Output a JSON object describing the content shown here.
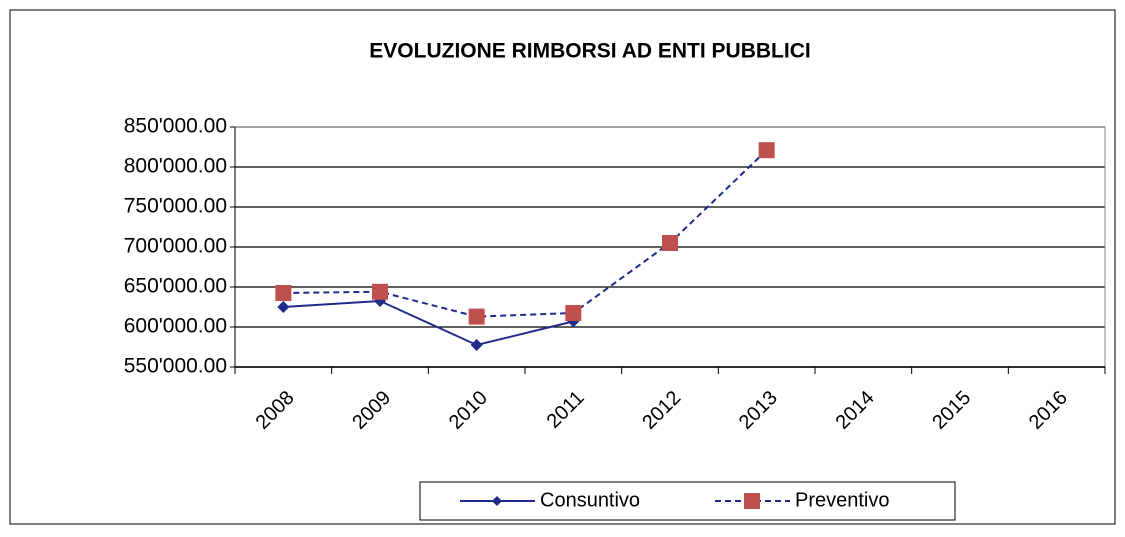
{
  "chart_data": {
    "type": "line",
    "title": "EVOLUZIONE RIMBORSI AD ENTI PUBBLICI",
    "categories": [
      "2008",
      "2009",
      "2010",
      "2011",
      "2012",
      "2013",
      "2014",
      "2015",
      "2016"
    ],
    "series": [
      {
        "name": "Consuntivo",
        "color": "#1f2a8a",
        "marker": "diamond",
        "dash": false,
        "values": [
          625000,
          632500,
          577500,
          607000,
          null,
          null,
          null,
          null,
          null
        ]
      },
      {
        "name": "Preventivo",
        "color": "#1f2a8a",
        "marker_color": "#c0504d",
        "marker": "square",
        "dash": true,
        "values": [
          642500,
          644000,
          613000,
          617500,
          705000,
          821000,
          null,
          null,
          null
        ]
      }
    ],
    "ylim": [
      550000,
      850000
    ],
    "yticks": [
      {
        "value": 550000,
        "label": "550'000.00"
      },
      {
        "value": 600000,
        "label": "600'000.00"
      },
      {
        "value": 650000,
        "label": "650'000.00"
      },
      {
        "value": 700000,
        "label": "700'000.00"
      },
      {
        "value": 750000,
        "label": "750'000.00"
      },
      {
        "value": 800000,
        "label": "800'000.00"
      },
      {
        "value": 850000,
        "label": "850'000.00"
      }
    ],
    "grid": true,
    "legend": "bottom"
  }
}
